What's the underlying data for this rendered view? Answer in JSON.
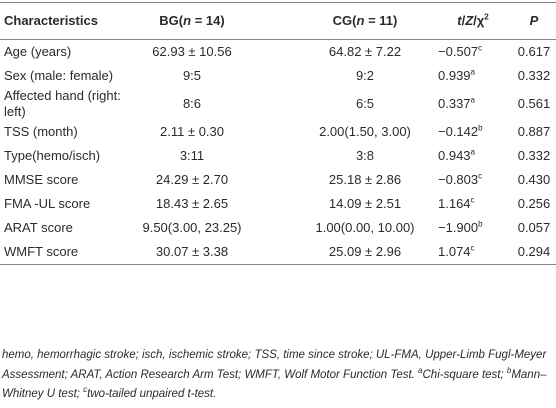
{
  "table": {
    "header": [
      [
        {
          "text": "Characteristics"
        }
      ],
      [
        {
          "text": "BG("
        },
        {
          "text": "n",
          "italic": true
        },
        {
          "text": " = 14)"
        }
      ],
      [
        {
          "text": "CG("
        },
        {
          "text": "n",
          "italic": true
        },
        {
          "text": " = 11)"
        }
      ],
      [
        {
          "text": "t",
          "italic": true
        },
        {
          "text": "/"
        },
        {
          "text": "Z",
          "italic": true
        },
        {
          "text": "/χ"
        },
        {
          "text": "2",
          "sup": true
        }
      ],
      [
        {
          "text": "P",
          "italic": true
        }
      ]
    ],
    "rows": [
      [
        "Age (years)",
        "62.93 ± 10.56",
        "64.82 ± 7.22",
        {
          "text": "−0.507",
          "sup": "c"
        },
        "0.617"
      ],
      [
        "Sex (male: female)",
        "9:5",
        "9:2",
        {
          "text": "0.939",
          "sup": "a"
        },
        "0.332"
      ],
      [
        "Affected hand (right: left)",
        "8:6",
        "6:5",
        {
          "text": "0.337",
          "sup": "a"
        },
        "0.561"
      ],
      [
        "TSS (month)",
        "2.11 ± 0.30",
        "2.00(1.50, 3.00)",
        {
          "text": "−0.142",
          "sup": "b"
        },
        "0.887"
      ],
      [
        "Type(hemo/isch)",
        "3:11",
        "3:8",
        {
          "text": "0.943",
          "sup": "a"
        },
        "0.332"
      ],
      [
        "MMSE score",
        "24.29 ± 2.70",
        "25.18 ± 2.86",
        {
          "text": "−0.803",
          "sup": "c"
        },
        "0.430"
      ],
      [
        "FMA -UL score",
        "18.43 ± 2.65",
        "14.09 ± 2.51",
        {
          "text": "1.164",
          "sup": "c"
        },
        "0.256"
      ],
      [
        "ARAT score",
        "9.50(3.00, 23.25)",
        "1.00(0.00, 10.00)",
        {
          "text": "−1.900",
          "sup": "b"
        },
        "0.057"
      ],
      [
        "WMFT score",
        "30.07 ± 3.38",
        "25.09 ± 2.96",
        {
          "text": "1.074",
          "sup": "c"
        },
        "0.294"
      ]
    ]
  },
  "footnote": [
    {
      "text": "hemo, hemorrhagic stroke; isch, ischemic stroke; TSS, time since stroke; UL-FMA, Upper-Limb Fugl-Meyer Assessment; ARAT, Action Research Arm Test; WMFT, Wolf Motor Function Test. "
    },
    {
      "text": "a",
      "sup": true
    },
    {
      "text": "Chi-square test; "
    },
    {
      "text": "b",
      "sup": true
    },
    {
      "text": "Mann–Whitney U test; "
    },
    {
      "text": "c",
      "sup": true
    },
    {
      "text": "two-tailed unpaired "
    },
    {
      "text": "t",
      "italic": true
    },
    {
      "text": "-test."
    }
  ]
}
